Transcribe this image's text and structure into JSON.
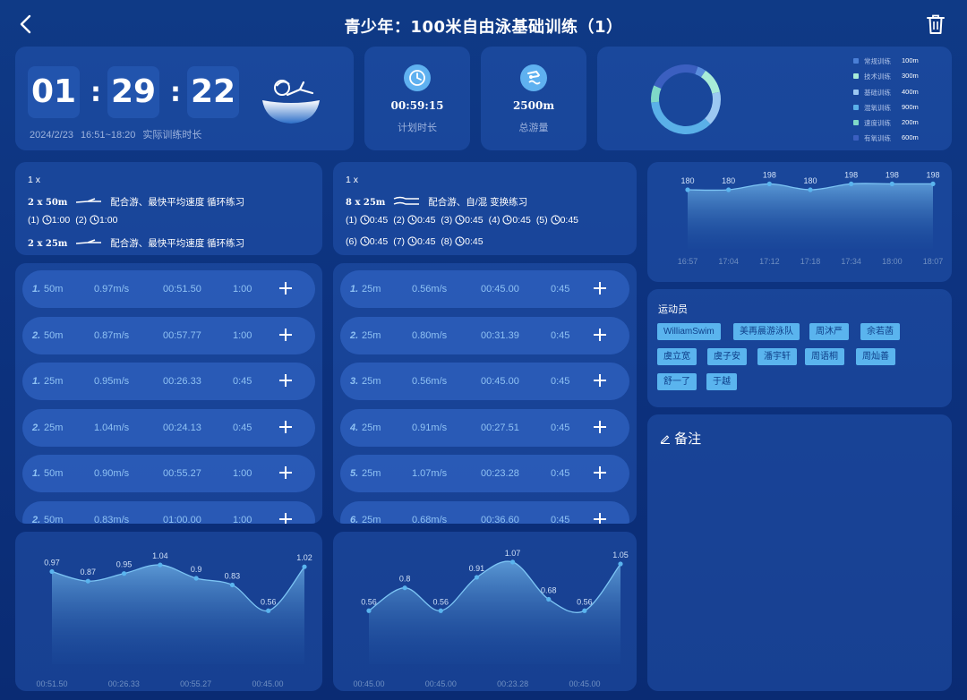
{
  "header": {
    "title": "青少年：100米自由泳基础训练（1）"
  },
  "timer": {
    "hh": "01",
    "mm": "29",
    "ss": "22",
    "date": "2024/2/23",
    "time_range": "16:51~18:20",
    "label": "实际训练时长"
  },
  "plan_duration": {
    "value": "00:59:15",
    "label": "计划时长"
  },
  "total_distance": {
    "value": "2500m",
    "label": "总游量"
  },
  "legend": [
    {
      "name": "常规训练",
      "value": "100m",
      "color": "#4a7fd6"
    },
    {
      "name": "技术训练",
      "value": "300m",
      "color": "#a8ecd8"
    },
    {
      "name": "基础训练",
      "value": "400m",
      "color": "#9cc8f2"
    },
    {
      "name": "混氧训练",
      "value": "900m",
      "color": "#5ab0e8"
    },
    {
      "name": "速度训练",
      "value": "200m",
      "color": "#7fd9c8"
    },
    {
      "name": "有氧训练",
      "value": "600m",
      "color": "#3b5fc0"
    }
  ],
  "donut": [
    {
      "value": 100,
      "color": "#5a8ede"
    },
    {
      "value": 300,
      "color": "#a8ecd8"
    },
    {
      "value": 400,
      "color": "#9cc8f2"
    },
    {
      "value": 900,
      "color": "#5ab0e8"
    },
    {
      "value": 200,
      "color": "#7fd9c8"
    },
    {
      "value": 600,
      "color": "#3b5fc0"
    }
  ],
  "plan1": {
    "head": "1 x",
    "line1_set": "2 x 50m",
    "line1_text": "配合游、最快平均速度  循环练习",
    "rests": [
      {
        "i": "(1)",
        "t": "1:00"
      },
      {
        "i": "(2)",
        "t": "1:00"
      }
    ],
    "line3_set": "2 x 25m",
    "line3_text": "配合游、最快平均速度  循环练习"
  },
  "plan2": {
    "head": "1 x",
    "line1_set": "8 x 25m",
    "line1_text": "配合游、自/混  变换练习",
    "rests_a": [
      {
        "i": "(1)",
        "t": "0:45"
      },
      {
        "i": "(2)",
        "t": "0:45"
      },
      {
        "i": "(3)",
        "t": "0:45"
      },
      {
        "i": "(4)",
        "t": "0:45"
      },
      {
        "i": "(5)",
        "t": "0:45"
      }
    ],
    "rests_b": [
      {
        "i": "(6)",
        "t": "0:45"
      },
      {
        "i": "(7)",
        "t": "0:45"
      },
      {
        "i": "(8)",
        "t": "0:45"
      }
    ]
  },
  "laps1": [
    {
      "idx": "1.",
      "dist": "50m",
      "speed": "0.97m/s",
      "time": "00:51.50",
      "rest": "1:00"
    },
    {
      "idx": "2.",
      "dist": "50m",
      "speed": "0.87m/s",
      "time": "00:57.77",
      "rest": "1:00"
    },
    {
      "idx": "1.",
      "dist": "25m",
      "speed": "0.95m/s",
      "time": "00:26.33",
      "rest": "0:45"
    },
    {
      "idx": "2.",
      "dist": "25m",
      "speed": "1.04m/s",
      "time": "00:24.13",
      "rest": "0:45"
    },
    {
      "idx": "1.",
      "dist": "50m",
      "speed": "0.90m/s",
      "time": "00:55.27",
      "rest": "1:00"
    },
    {
      "idx": "2.",
      "dist": "50m",
      "speed": "0.83m/s",
      "time": "01:00.00",
      "rest": "1:00"
    }
  ],
  "laps2": [
    {
      "idx": "1.",
      "dist": "25m",
      "speed": "0.56m/s",
      "time": "00:45.00",
      "rest": "0:45"
    },
    {
      "idx": "2.",
      "dist": "25m",
      "speed": "0.80m/s",
      "time": "00:31.39",
      "rest": "0:45"
    },
    {
      "idx": "3.",
      "dist": "25m",
      "speed": "0.56m/s",
      "time": "00:45.00",
      "rest": "0:45"
    },
    {
      "idx": "4.",
      "dist": "25m",
      "speed": "0.91m/s",
      "time": "00:27.51",
      "rest": "0:45"
    },
    {
      "idx": "5.",
      "dist": "25m",
      "speed": "1.07m/s",
      "time": "00:23.28",
      "rest": "0:45"
    },
    {
      "idx": "6.",
      "dist": "25m",
      "speed": "0.68m/s",
      "time": "00:36.60",
      "rest": "0:45"
    }
  ],
  "athletes": {
    "title": "运动员",
    "names": [
      "WilliamSwim",
      "美再晨游泳队",
      "周沐严",
      "余若菡",
      "虞立宽",
      "虞子安",
      "潘宇轩",
      "周语桐",
      "周灿善",
      "舒一了",
      "于越"
    ]
  },
  "notes": {
    "title": "备注"
  },
  "chart_data": [
    {
      "type": "area",
      "x": [
        "16:57",
        "17:04",
        "17:12",
        "17:18",
        "17:34",
        "18:00",
        "18:07"
      ],
      "values": [
        180,
        180,
        198,
        180,
        198,
        198,
        198
      ],
      "data_labels": [
        "180",
        "180",
        "198",
        "180",
        "198",
        "198",
        "198"
      ],
      "ylim": [
        0,
        210
      ]
    },
    {
      "type": "area",
      "x_ticks": [
        "00:51.50",
        "00:26.33",
        "00:55.27",
        "00:45.00"
      ],
      "values": [
        0.97,
        0.87,
        0.95,
        1.04,
        0.9,
        0.83,
        0.56,
        1.02
      ],
      "data_labels": [
        "0.97",
        "0.87",
        "0.95",
        "1.04",
        "0.9",
        "0.83",
        "0.56",
        "1.02"
      ],
      "ylim": [
        0,
        1.2
      ]
    },
    {
      "type": "area",
      "x_ticks": [
        "00:45.00",
        "00:45.00",
        "00:23.28",
        "00:45.00"
      ],
      "values": [
        0.56,
        0.8,
        0.56,
        0.91,
        1.07,
        0.68,
        0.56,
        1.05
      ],
      "data_labels": [
        "0.56",
        "0.8",
        "0.56",
        "0.91",
        "1.07",
        "0.68",
        "0.56",
        "1.05"
      ],
      "ylim": [
        0,
        1.2
      ]
    }
  ]
}
